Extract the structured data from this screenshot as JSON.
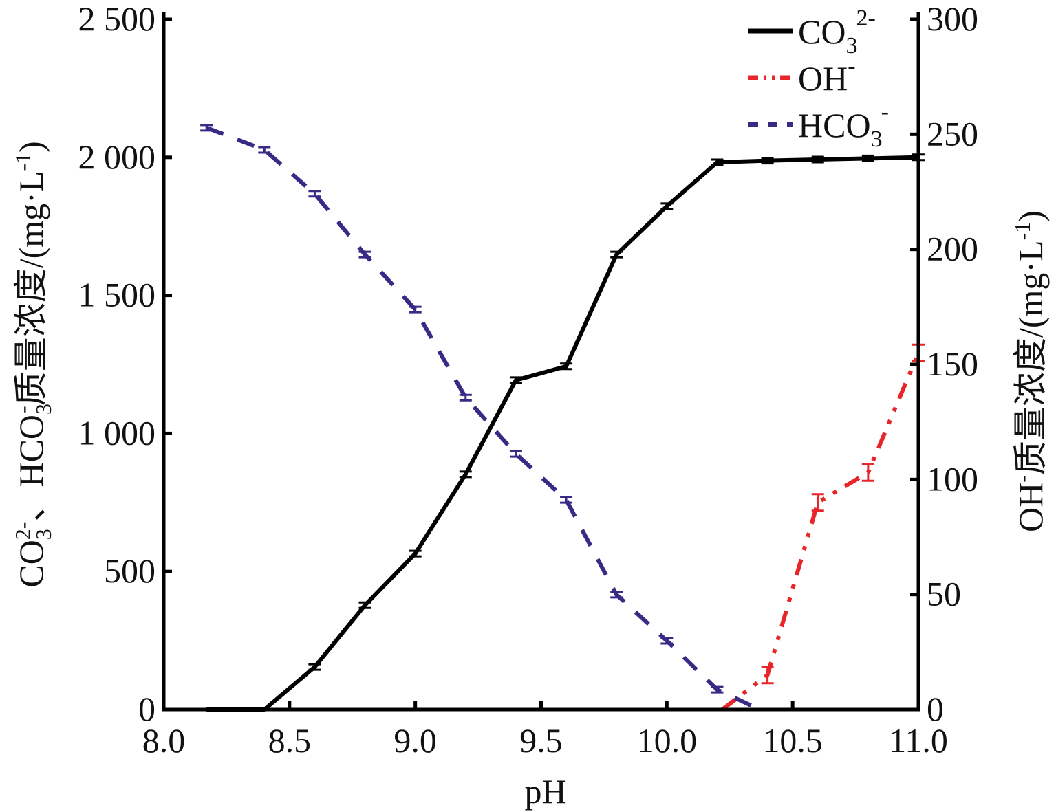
{
  "chart_data": {
    "type": "line",
    "title": "",
    "xlabel": "pH",
    "ylabel_left": "CO3 2-、HCO3 - 质量浓度/(mg·L-1)",
    "ylabel_left_parts": {
      "a": "CO",
      "b": "3",
      "c": "2-",
      "d": "、HCO",
      "e": "3",
      "f": "-",
      "g": "质量浓度/(mg·L",
      "h": "-1",
      "i": ")"
    },
    "ylabel_right": "OH- 质量浓度/(mg·L-1)",
    "ylabel_right_parts": {
      "a": "OH",
      "b": "-",
      "c": "质量浓度/(mg·L",
      "d": "-1",
      "e": ")"
    },
    "xlim": [
      8.0,
      11.0
    ],
    "ylim_left": [
      0,
      2500
    ],
    "ylim_right": [
      0,
      300
    ],
    "x_ticks": [
      "8.0",
      "8.5",
      "9.0",
      "9.5",
      "10.0",
      "10.5",
      "11.0"
    ],
    "y_ticks_left": [
      "0",
      "500",
      "1 000",
      "1 500",
      "2 000",
      "2 500"
    ],
    "y_ticks_right": [
      "0",
      "50",
      "100",
      "150",
      "200",
      "250",
      "300"
    ],
    "legend_position": "top-right",
    "series": [
      {
        "name": "CO3 2-",
        "label": "CO",
        "sub": "3",
        "sup": "2-",
        "axis": "left",
        "color": "#000000",
        "style": "solid",
        "x": [
          8.17,
          8.4,
          8.6,
          8.8,
          9.0,
          9.2,
          9.4,
          9.6,
          9.8,
          10.0,
          10.2,
          10.4,
          10.6,
          10.8,
          11.0
        ],
        "y": [
          0,
          0,
          154,
          378,
          565,
          852,
          1193,
          1243,
          1648,
          1823,
          1982,
          1988,
          1992,
          1996,
          2000
        ]
      },
      {
        "name": "OH-",
        "label": "OH",
        "sub": "",
        "sup": "-",
        "axis": "right",
        "color": "#e8262a",
        "style": "dashdotdot",
        "x": [
          10.22,
          10.4,
          10.6,
          10.8,
          11.0
        ],
        "y": [
          0,
          15,
          90,
          103,
          155
        ]
      },
      {
        "name": "HCO3-",
        "label": "HCO",
        "sub": "3",
        "sup": "-",
        "axis": "left",
        "color": "#3a2a86",
        "style": "dash",
        "x": [
          8.17,
          8.4,
          8.6,
          8.8,
          9.0,
          9.2,
          9.4,
          9.6,
          9.8,
          10.0,
          10.2,
          10.37
        ],
        "y": [
          2107,
          2027,
          1868,
          1648,
          1449,
          1130,
          926,
          759,
          416,
          249,
          72,
          0
        ]
      }
    ],
    "grid": false
  }
}
